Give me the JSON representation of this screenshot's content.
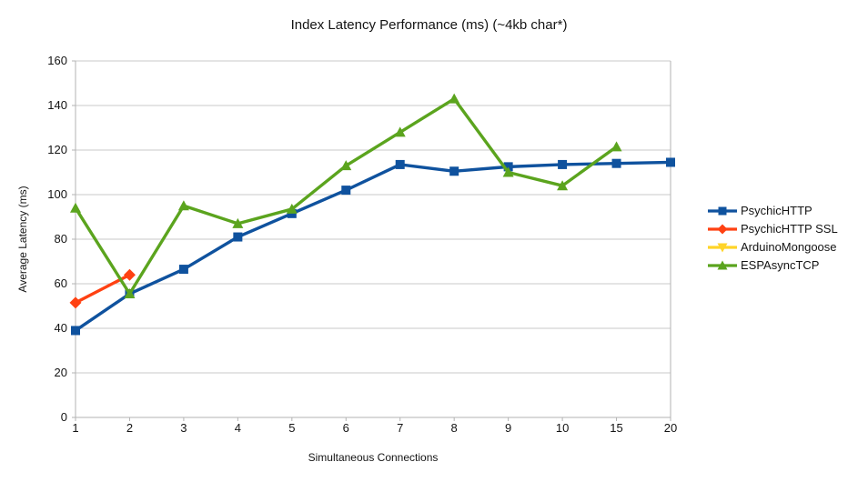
{
  "title": "Index Latency Performance (ms) (~4kb char*)",
  "chart_data": {
    "type": "line",
    "title": "Index Latency Performance (ms) (~4kb char*)",
    "xlabel": "Simultaneous Connections",
    "ylabel": "Average Latency (ms)",
    "x_categories": [
      "1",
      "2",
      "3",
      "4",
      "5",
      "6",
      "7",
      "8",
      "9",
      "10",
      "15",
      "20"
    ],
    "ylim": [
      0,
      160
    ],
    "ytick_step": 20,
    "grid": "horizontal",
    "legend_position": "right",
    "colors": {
      "grid": "#c9c9c9",
      "axis": "#b3b3b3",
      "text": "#141414"
    },
    "series": [
      {
        "name": "PsychicHTTP",
        "color": "#0f529e",
        "marker": "square",
        "values": [
          39,
          55.5,
          66.5,
          81,
          91.5,
          102,
          113.5,
          110.5,
          112.5,
          113.5,
          114,
          114.5
        ]
      },
      {
        "name": "PsychicHTTP SSL",
        "color": "#ff4112",
        "marker": "diamond",
        "values": [
          51.5,
          64,
          null,
          null,
          null,
          null,
          null,
          null,
          null,
          null,
          null,
          null
        ]
      },
      {
        "name": "ArduinoMongoose",
        "color": "#ffd428",
        "marker": "triangle-down",
        "values": [
          null,
          null,
          null,
          null,
          null,
          null,
          null,
          null,
          null,
          null,
          null,
          null
        ]
      },
      {
        "name": "ESPAsyncTCP",
        "color": "#5ba41e",
        "marker": "triangle-up",
        "values": [
          94,
          55.5,
          95,
          87,
          93.5,
          113,
          128,
          143,
          110,
          104,
          121.5,
          null
        ]
      }
    ]
  }
}
